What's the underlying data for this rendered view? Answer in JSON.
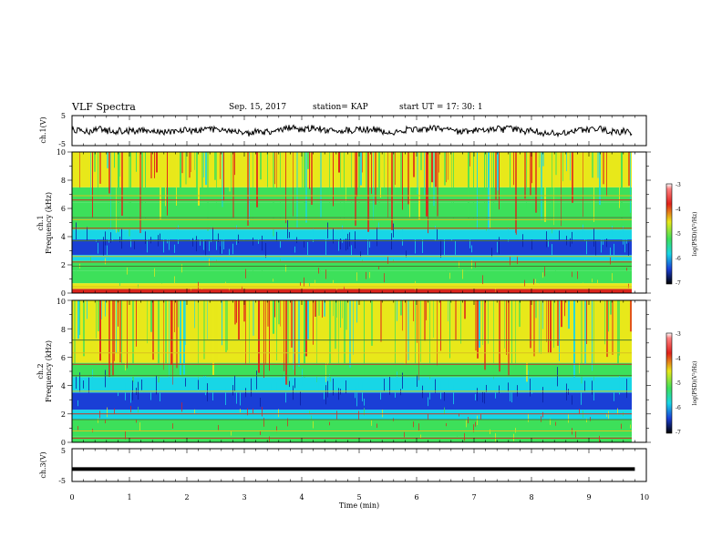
{
  "header": {
    "title": "VLF Spectra",
    "date": "Sep. 15, 2017",
    "station": "station= KAP",
    "start_time": "start  UT =   17: 30: 1"
  },
  "chart_data": [
    {
      "type": "line",
      "ylabel": "ch.1(V)",
      "ylim": [
        -5,
        5
      ],
      "yticks": [
        "5",
        "-5"
      ],
      "xlim": [
        0,
        10
      ],
      "description_series": "trace"
    },
    {
      "type": "heatmap",
      "ylabel_line1": "ch.1",
      "ylabel_line2": "Frequency (kHz)",
      "ylim": [
        0,
        10
      ],
      "yticks": [
        "0",
        "2",
        "4",
        "6",
        "8",
        "10"
      ],
      "xlim": [
        0,
        10
      ],
      "colorbar": {
        "label": "log(PSD)(V²/Hz)",
        "range": [
          -7,
          -3
        ],
        "ticks": [
          "-3",
          "-4",
          "-5",
          "-6",
          "-7"
        ]
      }
    },
    {
      "type": "heatmap",
      "ylabel_line1": "ch.2",
      "ylabel_line2": "Frequency (kHz)",
      "ylim": [
        0,
        10
      ],
      "yticks": [
        "0",
        "2",
        "4",
        "6",
        "8",
        "10"
      ],
      "xlim": [
        0,
        10
      ],
      "colorbar": {
        "label": "log(PSD)(V²/Hz)",
        "range": [
          -7,
          -3
        ],
        "ticks": [
          "-3",
          "-4",
          "-5",
          "-6",
          "-7"
        ]
      }
    },
    {
      "type": "line",
      "ylabel": "ch.3(V)",
      "ylim": [
        -5,
        5
      ],
      "yticks": [
        "5",
        "-5"
      ],
      "xlim": [
        0,
        10
      ],
      "x": [
        0,
        9.8
      ],
      "y": [
        -1.2,
        -1.2
      ]
    }
  ],
  "xaxis": {
    "label": "Time  (min)",
    "ticks": [
      "0",
      "1",
      "2",
      "3",
      "4",
      "5",
      "6",
      "7",
      "8",
      "9",
      "10"
    ]
  },
  "colors": {
    "blue_band": "#1a3fd6",
    "cyan_band": "#18d6e6",
    "green_band": "#3de05a",
    "yellow_band": "#e8e81a",
    "red_band": "#e0201a"
  }
}
